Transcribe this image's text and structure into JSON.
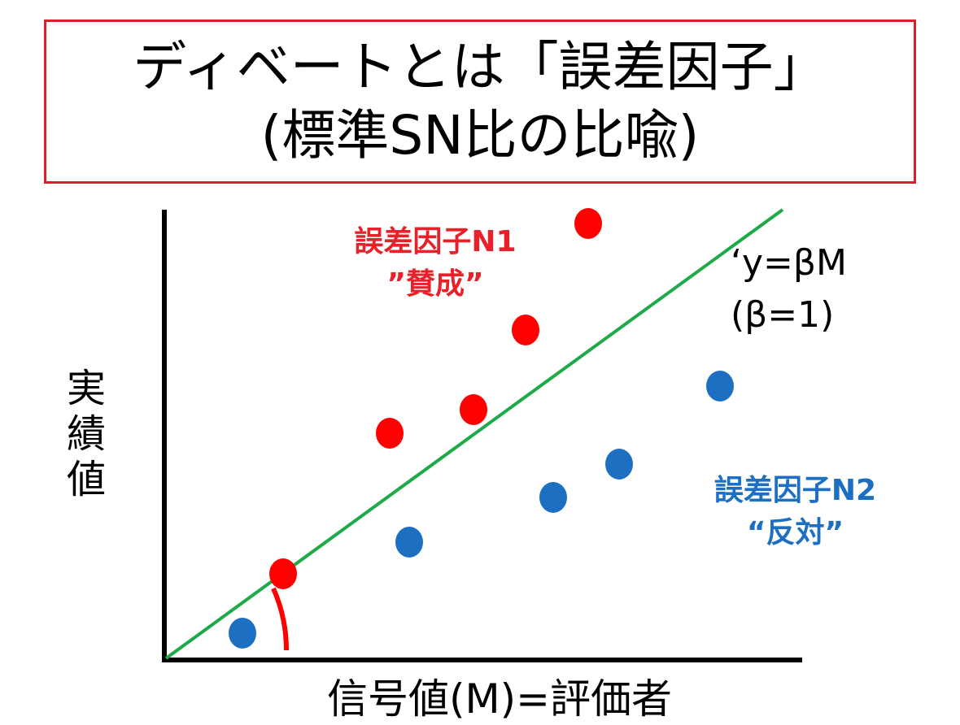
{
  "title": {
    "line1": "ディベートとは「誤差因子」",
    "line2": "(標準SN比の比喩)"
  },
  "labels": {
    "n1_line1": "誤差因子N1",
    "n1_line2": "”賛成”",
    "n2_line1": "誤差因子N2",
    "n2_line2": "“反対”",
    "equation_line1": "‘y=βM",
    "equation_line2": "(β=1)",
    "y_axis": "実績値",
    "x_axis": "信号値(M)=評価者"
  },
  "colors": {
    "title_border": "#d9202c",
    "n1_points": "#ff0000",
    "n2_points": "#1c6fc1",
    "reference_line": "#1faa4a",
    "axes": "#000000"
  }
}
